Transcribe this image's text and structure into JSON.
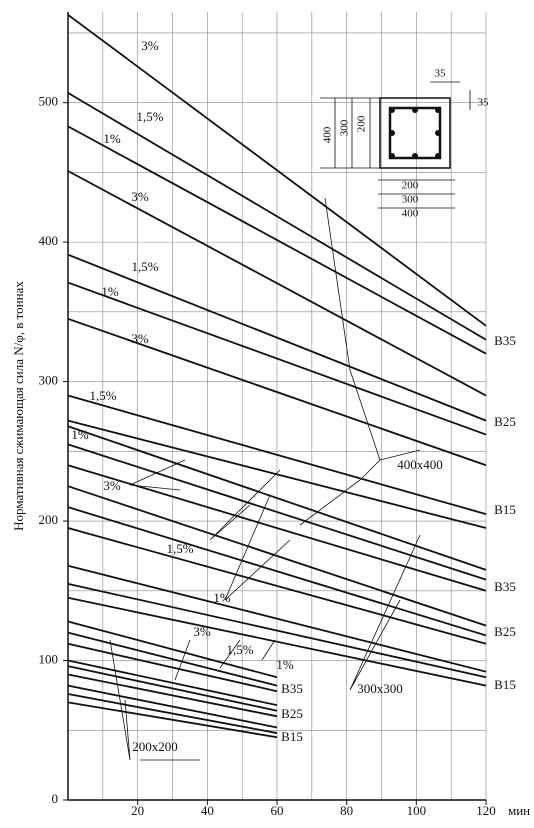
{
  "chart_data": {
    "type": "line",
    "ylabel": "Нормативная сжимающая сила N/φ,  в тоннах",
    "xlabel": "мин",
    "xlim": [
      0,
      120
    ],
    "ylim": [
      0,
      565
    ],
    "xticks": [
      20,
      40,
      60,
      80,
      100,
      120
    ],
    "yticks": [
      0,
      100,
      200,
      300,
      400,
      500
    ],
    "minor_xticks": [
      10,
      30,
      50,
      70,
      90,
      110
    ],
    "minor_yticks": [
      50,
      150,
      250,
      350,
      450,
      550
    ],
    "grid": true,
    "color": "#111111",
    "series": [
      {
        "x": [
          0,
          120
        ],
        "values": [
          563,
          340
        ]
      },
      {
        "x": [
          0,
          120
        ],
        "values": [
          507,
          330
        ]
      },
      {
        "x": [
          0,
          120
        ],
        "values": [
          483,
          320
        ]
      },
      {
        "x": [
          0,
          120
        ],
        "values": [
          451,
          290
        ]
      },
      {
        "x": [
          0,
          120
        ],
        "values": [
          391,
          272
        ]
      },
      {
        "x": [
          0,
          120
        ],
        "values": [
          371,
          262
        ]
      },
      {
        "x": [
          0,
          120
        ],
        "values": [
          345,
          240
        ]
      },
      {
        "x": [
          0,
          120
        ],
        "values": [
          290,
          205
        ]
      },
      {
        "x": [
          0,
          120
        ],
        "values": [
          272,
          195
        ]
      },
      {
        "x": [
          0,
          120
        ],
        "values": [
          268,
          165
        ]
      },
      {
        "x": [
          0,
          120
        ],
        "values": [
          255,
          158
        ]
      },
      {
        "x": [
          0,
          120
        ],
        "values": [
          240,
          150
        ]
      },
      {
        "x": [
          0,
          120
        ],
        "values": [
          225,
          125
        ]
      },
      {
        "x": [
          0,
          120
        ],
        "values": [
          210,
          118
        ]
      },
      {
        "x": [
          0,
          120
        ],
        "values": [
          195,
          112
        ]
      },
      {
        "x": [
          0,
          120
        ],
        "values": [
          168,
          92
        ]
      },
      {
        "x": [
          0,
          120
        ],
        "values": [
          155,
          88
        ]
      },
      {
        "x": [
          0,
          120
        ],
        "values": [
          145,
          82
        ]
      },
      {
        "x": [
          0,
          60
        ],
        "values": [
          128,
          88
        ]
      },
      {
        "x": [
          0,
          60
        ],
        "values": [
          120,
          82
        ]
      },
      {
        "x": [
          0,
          60
        ],
        "values": [
          112,
          78
        ]
      },
      {
        "x": [
          0,
          60
        ],
        "values": [
          100,
          68
        ]
      },
      {
        "x": [
          0,
          60
        ],
        "values": [
          96,
          64
        ]
      },
      {
        "x": [
          0,
          60
        ],
        "values": [
          90,
          60
        ]
      },
      {
        "x": [
          0,
          60
        ],
        "values": [
          82,
          52
        ]
      },
      {
        "x": [
          0,
          60
        ],
        "values": [
          76,
          48
        ]
      },
      {
        "x": [
          0,
          60
        ],
        "values": [
          70,
          45
        ]
      }
    ],
    "annotations": [
      "3%",
      "1,5%",
      "1%",
      "3%",
      "1,5%",
      "1%",
      "3%",
      "1,5%",
      "1%",
      "3%",
      "1,5%",
      "1%",
      "3%",
      "1,5%",
      "1%",
      "B35",
      "B25",
      "B15",
      "B35",
      "B25",
      "B15",
      "B35",
      "B25",
      "B15",
      "400x400",
      "300x300",
      "200x200",
      "35",
      "35",
      "400",
      "300",
      "200",
      "200",
      "300",
      "400"
    ]
  }
}
